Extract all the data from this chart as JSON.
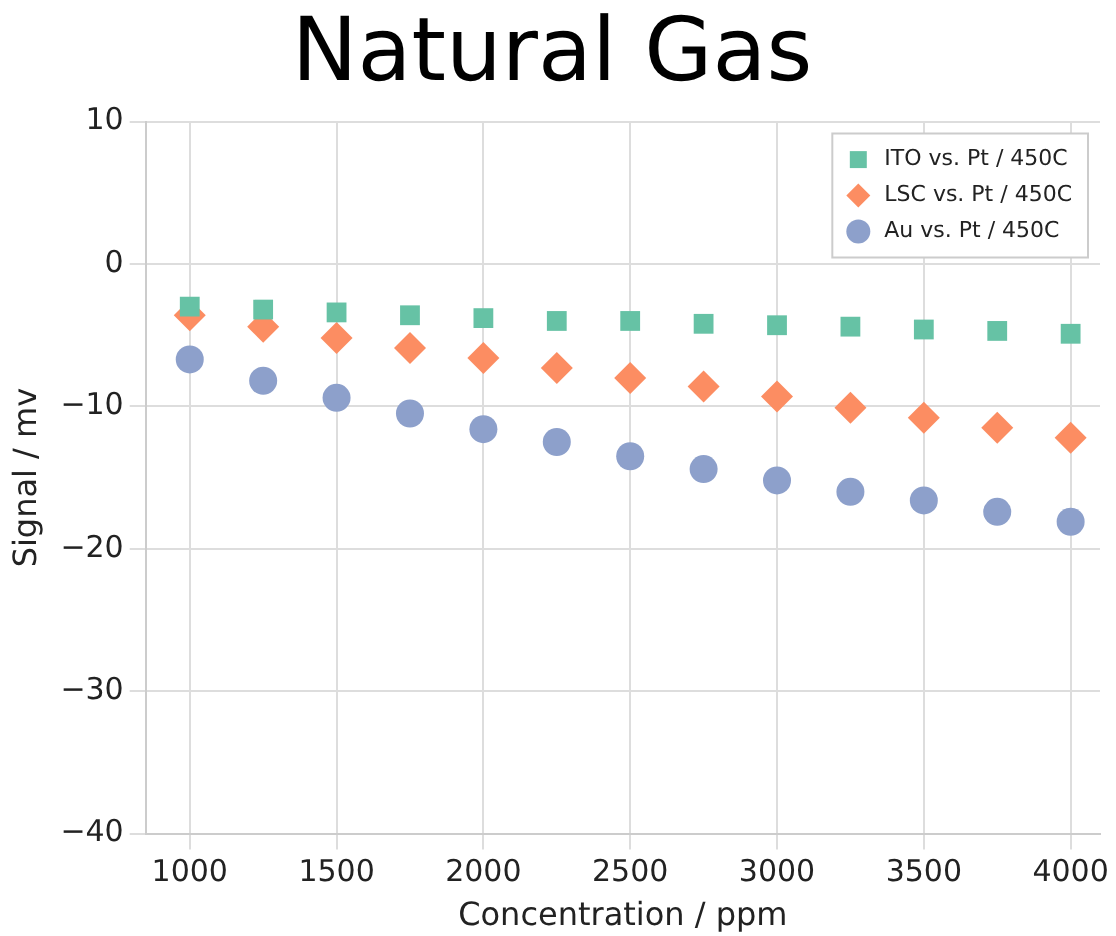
{
  "chart_data": {
    "type": "scatter",
    "title": "Natural Gas",
    "xlabel": "Concentration / ppm",
    "ylabel": "Signal / mv",
    "x": [
      1000,
      1250,
      1500,
      1750,
      2000,
      2250,
      2500,
      2750,
      3000,
      3250,
      3500,
      3750,
      4000
    ],
    "series": [
      {
        "name": "ITO vs. Pt / 450C",
        "color": "#66c2a5",
        "marker": "square",
        "values": [
          -3.0,
          -3.2,
          -3.4,
          -3.6,
          -3.8,
          -4.0,
          -4.0,
          -4.2,
          -4.3,
          -4.4,
          -4.6,
          -4.7,
          -4.9
        ]
      },
      {
        "name": "LSC vs. Pt / 450C",
        "color": "#fc8d62",
        "marker": "diamond",
        "values": [
          -3.6,
          -4.4,
          -5.2,
          -5.9,
          -6.6,
          -7.3,
          -8.0,
          -8.6,
          -9.3,
          -10.1,
          -10.8,
          -11.5,
          -12.2
        ]
      },
      {
        "name": "Au vs. Pt / 450C",
        "color": "#8da0cb",
        "marker": "circle",
        "values": [
          -6.7,
          -8.2,
          -9.4,
          -10.5,
          -11.6,
          -12.5,
          -13.5,
          -14.4,
          -15.2,
          -16.0,
          -16.6,
          -17.4,
          -18.1
        ]
      }
    ],
    "xlim": [
      850,
      4100
    ],
    "xticks": [
      1000,
      1500,
      2000,
      2500,
      3000,
      3500,
      4000
    ],
    "ylim": [
      -40,
      10
    ],
    "yticks": [
      -40,
      -30,
      -20,
      -10,
      0,
      10
    ],
    "grid": true,
    "legend": "top right"
  }
}
